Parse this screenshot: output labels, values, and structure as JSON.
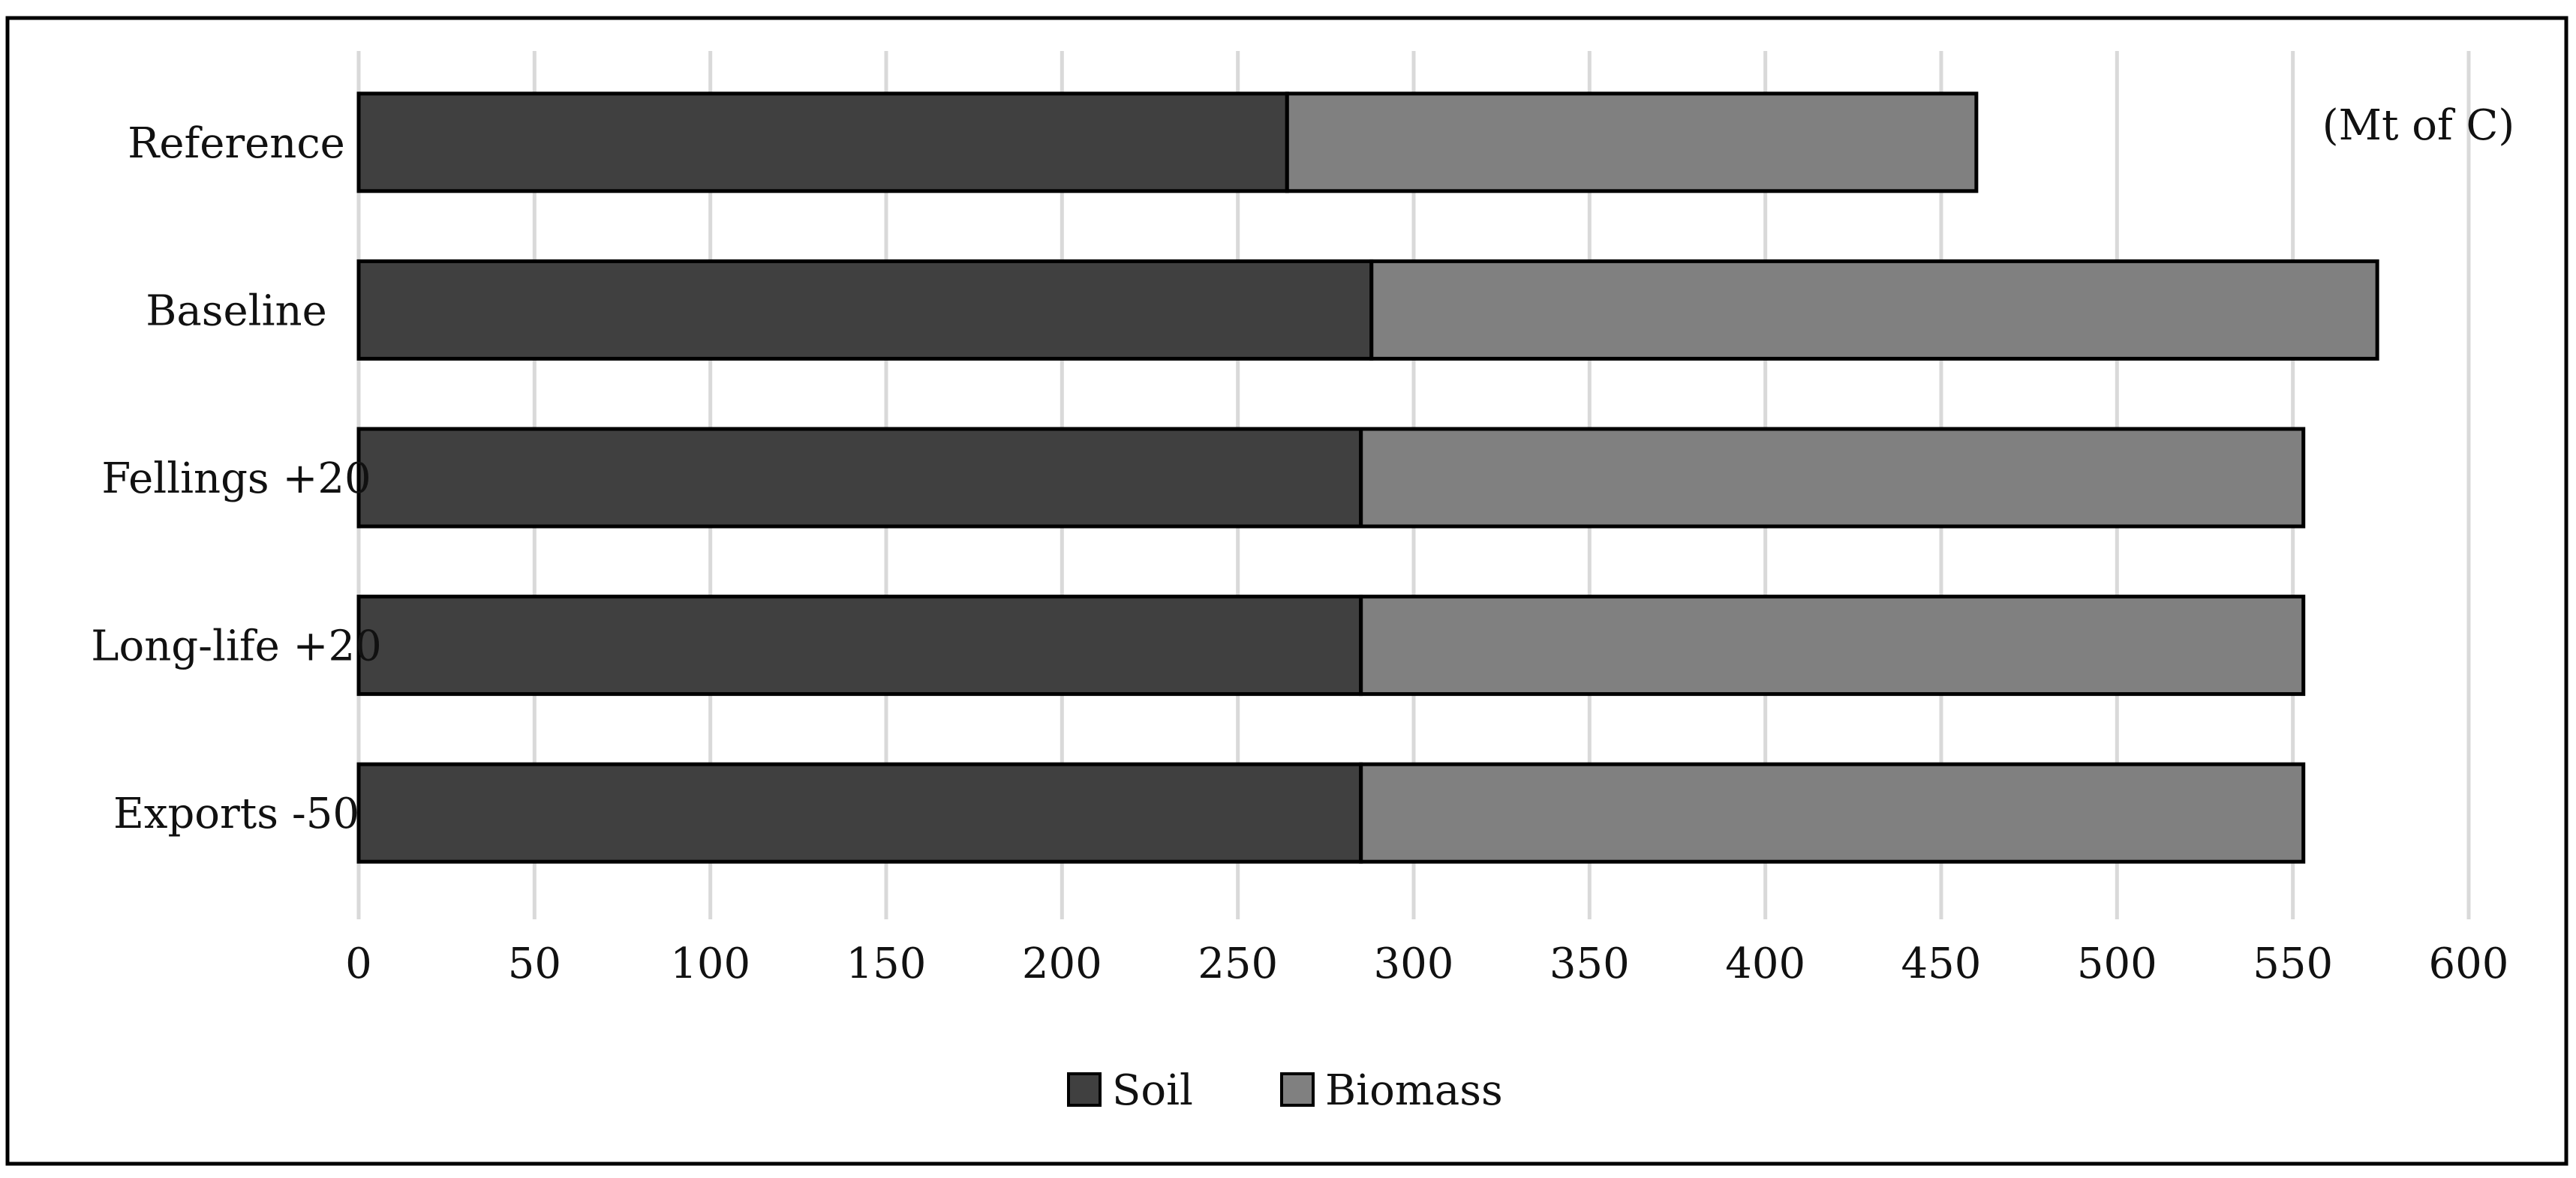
{
  "chart_data": {
    "type": "bar",
    "orientation": "horizontal",
    "stacked": true,
    "categories": [
      "Reference",
      "Baseline",
      "Fellings +20",
      "Long-life +20",
      "Exports -50"
    ],
    "series": [
      {
        "name": "Soil",
        "values": [
          264,
          288,
          285,
          285,
          285
        ],
        "color": "#404040"
      },
      {
        "name": "Biomass",
        "values": [
          196,
          286,
          268,
          268,
          268
        ],
        "color": "#808080"
      }
    ],
    "x_ticks": [
      "0",
      "50",
      "100",
      "150",
      "200",
      "250",
      "300",
      "350",
      "400",
      "450",
      "500",
      "550",
      "600"
    ],
    "xlim": [
      0,
      600
    ],
    "unit_label": "(Mt of C)",
    "grid": "vertical",
    "legend_position": "bottom-center",
    "gridline_color": "#d9d9d9",
    "bar_outline_color": "#000000"
  }
}
